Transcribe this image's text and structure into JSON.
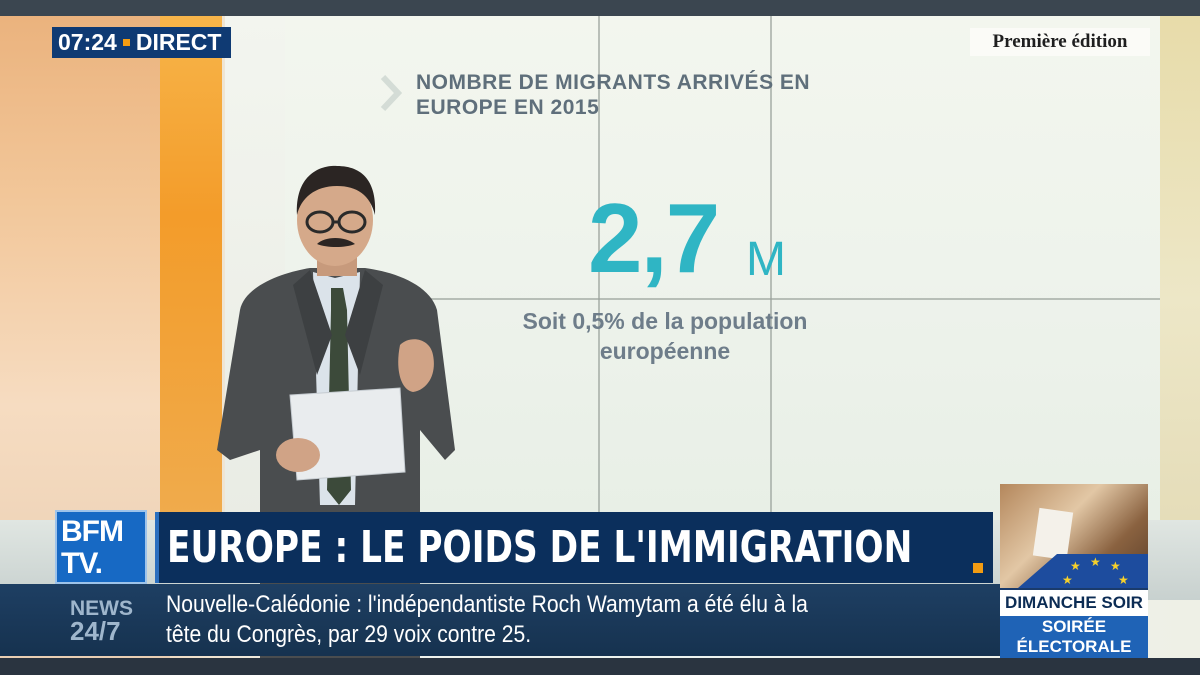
{
  "live_bug": {
    "time": "07:24",
    "label": "DIRECT"
  },
  "edition": "Première édition",
  "infographic": {
    "title_line1": "NOMBRE DE MIGRANTS ARRIVÉS EN",
    "title_line2": "EUROPE EN 2015",
    "value": "2,7",
    "unit": "M",
    "subtitle_line1": "Soit 0,5% de la population",
    "subtitle_line2": "européenne"
  },
  "channel_logo": {
    "line1": "BFM",
    "line2": "TV."
  },
  "banner": {
    "headline": "EUROPE : LE POIDS DE L'IMMIGRATION"
  },
  "ticker": {
    "label_line1": "NEWS",
    "label_line2": "24/7",
    "line1": "Nouvelle-Calédonie : l'indépendantiste Roch Wamytam a été élu à la",
    "line2": "tête du Congrès, par 29 voix contre 25."
  },
  "promo": {
    "title": "DIMANCHE SOIR",
    "subtitle_line1": "SOIRÉE",
    "subtitle_line2": "ÉLECTORALE"
  },
  "colors": {
    "accent_orange": "#f39c12",
    "brand_blue": "#0b2f5c",
    "value_teal": "#2fb5c4"
  }
}
